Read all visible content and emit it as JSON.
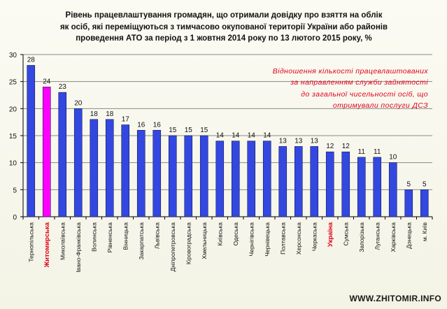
{
  "title": "Рівень працевлаштування громадян, що отримали довідку про взяття на облік як осіб, які переміщуються з тимчасово окупованої території України або районів проведення АТО за період з 1 жовтня 2014 року по 13 лютого 2015 року, %",
  "annotation": "Відношення кількості працевлаштованих за направленням служби зайнятості до загальної чисельності осіб, що отримували послуги ДСЗ",
  "watermark": "WWW.ZHITOMIR.INFO",
  "colors": {
    "bar": "#3348e0",
    "bar_highlight": "#ff00ff",
    "label_highlight": "#e2001a",
    "grid": "#8a8a8a",
    "annotation": "#e2001a"
  },
  "chart_data": {
    "type": "bar",
    "title": "Рівень працевлаштування громадян, що отримали довідку про взяття на облік як осіб, які переміщуються з тимчасово окупованої території України або районів проведення АТО за період з 1 жовтня 2014 року по 13 лютого 2015 року, %",
    "xlabel": "",
    "ylabel": "",
    "ylim": [
      0,
      30
    ],
    "yticks": [
      0,
      5,
      10,
      15,
      20,
      25,
      30
    ],
    "grid": true,
    "legend": "none",
    "categories": [
      "Тернопільська",
      "Житомирська",
      "Миколаївська",
      "Івано-Франківська",
      "Волинська",
      "Рівненська",
      "Вінницька",
      "Закарпатська",
      "Львівська",
      "Дніпропетровська",
      "Кіровоградська",
      "Хмельницька",
      "Київська",
      "Одеська",
      "Чернігівська",
      "Чернівецька",
      "Полтавська",
      "Херсонська",
      "Черкаська",
      "Україна",
      "Сумська",
      "Запорізька",
      "Луганська",
      "Харківська",
      "Донецька",
      "м. Київ"
    ],
    "values": [
      28,
      24,
      23,
      20,
      18,
      18,
      17,
      16,
      16,
      15,
      15,
      15,
      14,
      14,
      14,
      14,
      13,
      13,
      13,
      12,
      12,
      11,
      11,
      10,
      5,
      5
    ],
    "highlighted_bar": "Житомирська",
    "highlighted_labels": [
      "Житомирська",
      "Україна"
    ]
  }
}
